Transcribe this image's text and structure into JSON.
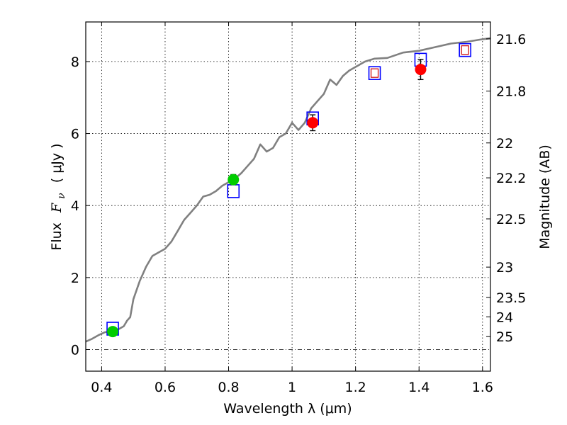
{
  "chart_data": {
    "type": "scatter",
    "xlabel": "Wavelength  λ (μm)",
    "ylabel_text": "Flux",
    "ylabel_symbol": "F",
    "ylabel_symbol_sub": "ν",
    "ylabel_unit": "( μJy )",
    "y2label": "Magnitude (AB)",
    "xlim": [
      0.35,
      1.625
    ],
    "ylim": [
      -0.6,
      9.1
    ],
    "grid": true,
    "x_ticks": [
      0.4,
      0.6,
      0.8,
      1.0,
      1.2,
      1.4,
      1.6
    ],
    "x_tick_labels": [
      "0.4",
      "0.6",
      "0.8",
      "1",
      "1.2",
      "1.4",
      "1.6"
    ],
    "y_ticks": [
      0,
      2,
      4,
      6,
      8
    ],
    "y_tick_labels": [
      "0",
      "2",
      "4",
      "6",
      "8"
    ],
    "y2_ticks": [
      {
        "flux": 8.63,
        "label": "21.6"
      },
      {
        "flux": 7.18,
        "label": "21.8"
      },
      {
        "flux": 5.74,
        "label": "22"
      },
      {
        "flux": 4.77,
        "label": "22.2"
      },
      {
        "flux": 3.63,
        "label": "22.5"
      },
      {
        "flux": 2.29,
        "label": "23"
      },
      {
        "flux": 1.45,
        "label": "23.5"
      },
      {
        "flux": 0.91,
        "label": "24"
      },
      {
        "flux": 0.36,
        "label": "25"
      }
    ],
    "colors": {
      "model": "#808080",
      "optical_points": "#00cc00",
      "nir_points": "#ff0000",
      "model_boxes": "#0000ff",
      "model_boxes_inner": "#cc0000"
    },
    "model_curve": {
      "x": [
        0.35,
        0.37,
        0.39,
        0.41,
        0.43,
        0.45,
        0.47,
        0.48,
        0.49,
        0.5,
        0.52,
        0.54,
        0.56,
        0.58,
        0.6,
        0.62,
        0.64,
        0.66,
        0.68,
        0.7,
        0.72,
        0.74,
        0.76,
        0.78,
        0.8,
        0.82,
        0.84,
        0.86,
        0.88,
        0.9,
        0.92,
        0.94,
        0.96,
        0.98,
        1.0,
        1.02,
        1.04,
        1.06,
        1.08,
        1.1,
        1.12,
        1.14,
        1.16,
        1.18,
        1.2,
        1.23,
        1.26,
        1.3,
        1.35,
        1.4,
        1.45,
        1.5,
        1.55,
        1.6,
        1.625
      ],
      "y": [
        0.22,
        0.3,
        0.4,
        0.48,
        0.52,
        0.55,
        0.65,
        0.8,
        0.9,
        1.4,
        1.9,
        2.3,
        2.6,
        2.7,
        2.8,
        3.0,
        3.3,
        3.6,
        3.8,
        4.0,
        4.25,
        4.3,
        4.4,
        4.55,
        4.65,
        4.75,
        4.9,
        5.1,
        5.3,
        5.7,
        5.5,
        5.6,
        5.9,
        6.0,
        6.3,
        6.1,
        6.3,
        6.7,
        6.9,
        7.1,
        7.5,
        7.35,
        7.6,
        7.75,
        7.85,
        8.0,
        8.08,
        8.1,
        8.25,
        8.3,
        8.4,
        8.5,
        8.55,
        8.62,
        8.65
      ]
    },
    "observed": [
      {
        "x": 0.435,
        "y": 0.5,
        "err": 0.08,
        "color": "optical"
      },
      {
        "x": 0.815,
        "y": 4.72,
        "err": 0.14,
        "color": "optical"
      },
      {
        "x": 1.065,
        "y": 6.3,
        "err": 0.22,
        "color": "nir"
      },
      {
        "x": 1.405,
        "y": 7.78,
        "err": 0.28,
        "color": "nir"
      }
    ],
    "model_boxes": [
      {
        "x": 0.435,
        "y": 0.58,
        "inner": false
      },
      {
        "x": 0.815,
        "y": 4.4,
        "inner": false
      },
      {
        "x": 1.065,
        "y": 6.42,
        "inner": false
      },
      {
        "x": 1.26,
        "y": 7.68,
        "inner": true
      },
      {
        "x": 1.405,
        "y": 8.05,
        "inner": false
      },
      {
        "x": 1.545,
        "y": 8.32,
        "inner": true
      }
    ]
  }
}
